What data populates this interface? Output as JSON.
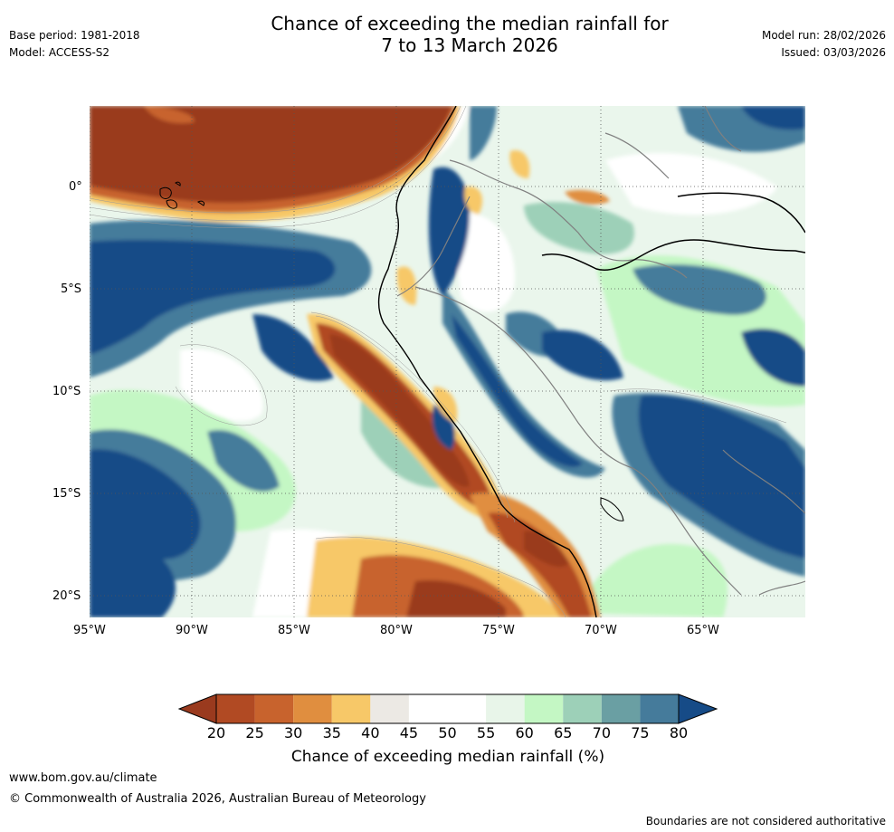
{
  "header": {
    "title_line1": "Chance of exceeding the median rainfall for",
    "title_line2": "7 to 13 March 2026",
    "base_period": "Base period: 1981-2018",
    "model": "Model: ACCESS-S2",
    "model_run": "Model run: 28/02/2026",
    "issued": "Issued: 03/03/2026"
  },
  "map": {
    "region": "Western South America and eastern Pacific",
    "lat_labels": [
      "0°",
      "5°S",
      "10°S",
      "15°S",
      "20°S"
    ],
    "lon_labels": [
      "95°W",
      "90°W",
      "85°W",
      "80°W",
      "75°W",
      "70°W",
      "65°W"
    ],
    "lat_range": [
      -21,
      4
    ],
    "lon_range": [
      -95,
      -60
    ],
    "grid_style": "dotted",
    "coastline_color": "#000000",
    "border_color": "#808080"
  },
  "legend": {
    "title": "Chance of exceeding median rainfall (%)",
    "ticks": [
      "20",
      "25",
      "30",
      "35",
      "40",
      "45",
      "50",
      "55",
      "60",
      "65",
      "70",
      "75",
      "80"
    ],
    "colors": [
      "#9a3a1e",
      "#b14a23",
      "#c8632d",
      "#e08e3f",
      "#f7c868",
      "#ece9e4",
      "#ffffff",
      "#ffffff",
      "#e8f5e9",
      "#c4f7c4",
      "#9dd0b8",
      "#6a9fa3",
      "#457b9b",
      "#164b87"
    ],
    "extend": "both"
  },
  "footer": {
    "url": "www.bom.gov.au/climate",
    "copyright": "© Commonwealth of Australia 2026, Australian Bureau of Meteorology",
    "disclaimer": "Boundaries are not considered authoritative"
  }
}
